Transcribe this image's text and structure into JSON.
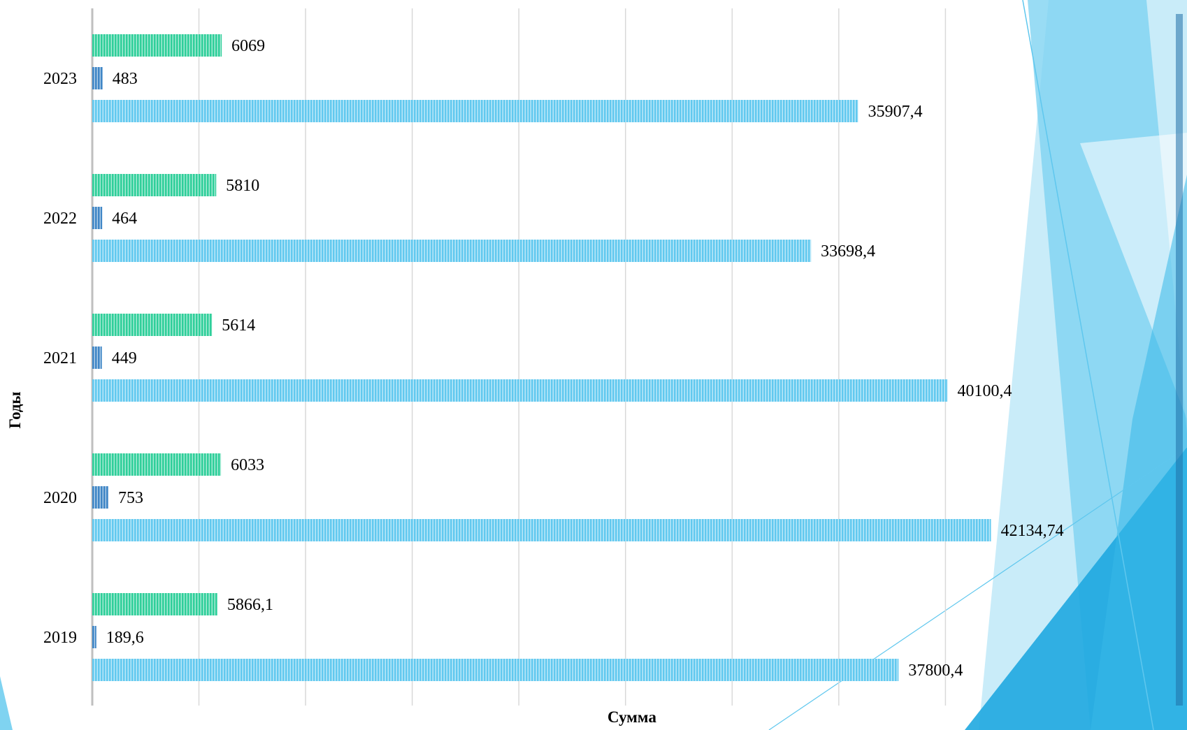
{
  "chart_data": {
    "type": "bar",
    "orientation": "horizontal",
    "categories": [
      "2019",
      "2020",
      "2021",
      "2022",
      "2023"
    ],
    "series": [
      {
        "values": [
          5866.1,
          6033,
          5614,
          5810,
          6069
        ],
        "labels": [
          "5866,1",
          "6033",
          "5614",
          "5810",
          "6069"
        ],
        "color": "#2fcf9a"
      },
      {
        "values": [
          189.6,
          753,
          449,
          464,
          483
        ],
        "labels": [
          "189,6",
          "753",
          "449",
          "464",
          "483"
        ],
        "color": "#3f86c6"
      },
      {
        "values": [
          37800.4,
          42134.74,
          40100.4,
          33698.4,
          35907.4
        ],
        "labels": [
          "37800,4",
          "42134,74",
          "40100,4",
          "33698,4",
          "35907,4"
        ],
        "color": "#62c9ef"
      }
    ],
    "xlabel": "Сумма",
    "ylabel": "Годы",
    "xlim": [
      0,
      45000
    ],
    "grid": "vertical",
    "legend": "none"
  },
  "colors": {
    "gridline": "#d9d9d9",
    "axis": "#bfbfbf",
    "decor_light": "#bfe9f8",
    "decor_mid": "#7fd3f1",
    "decor_dark": "#1fa8e0"
  }
}
